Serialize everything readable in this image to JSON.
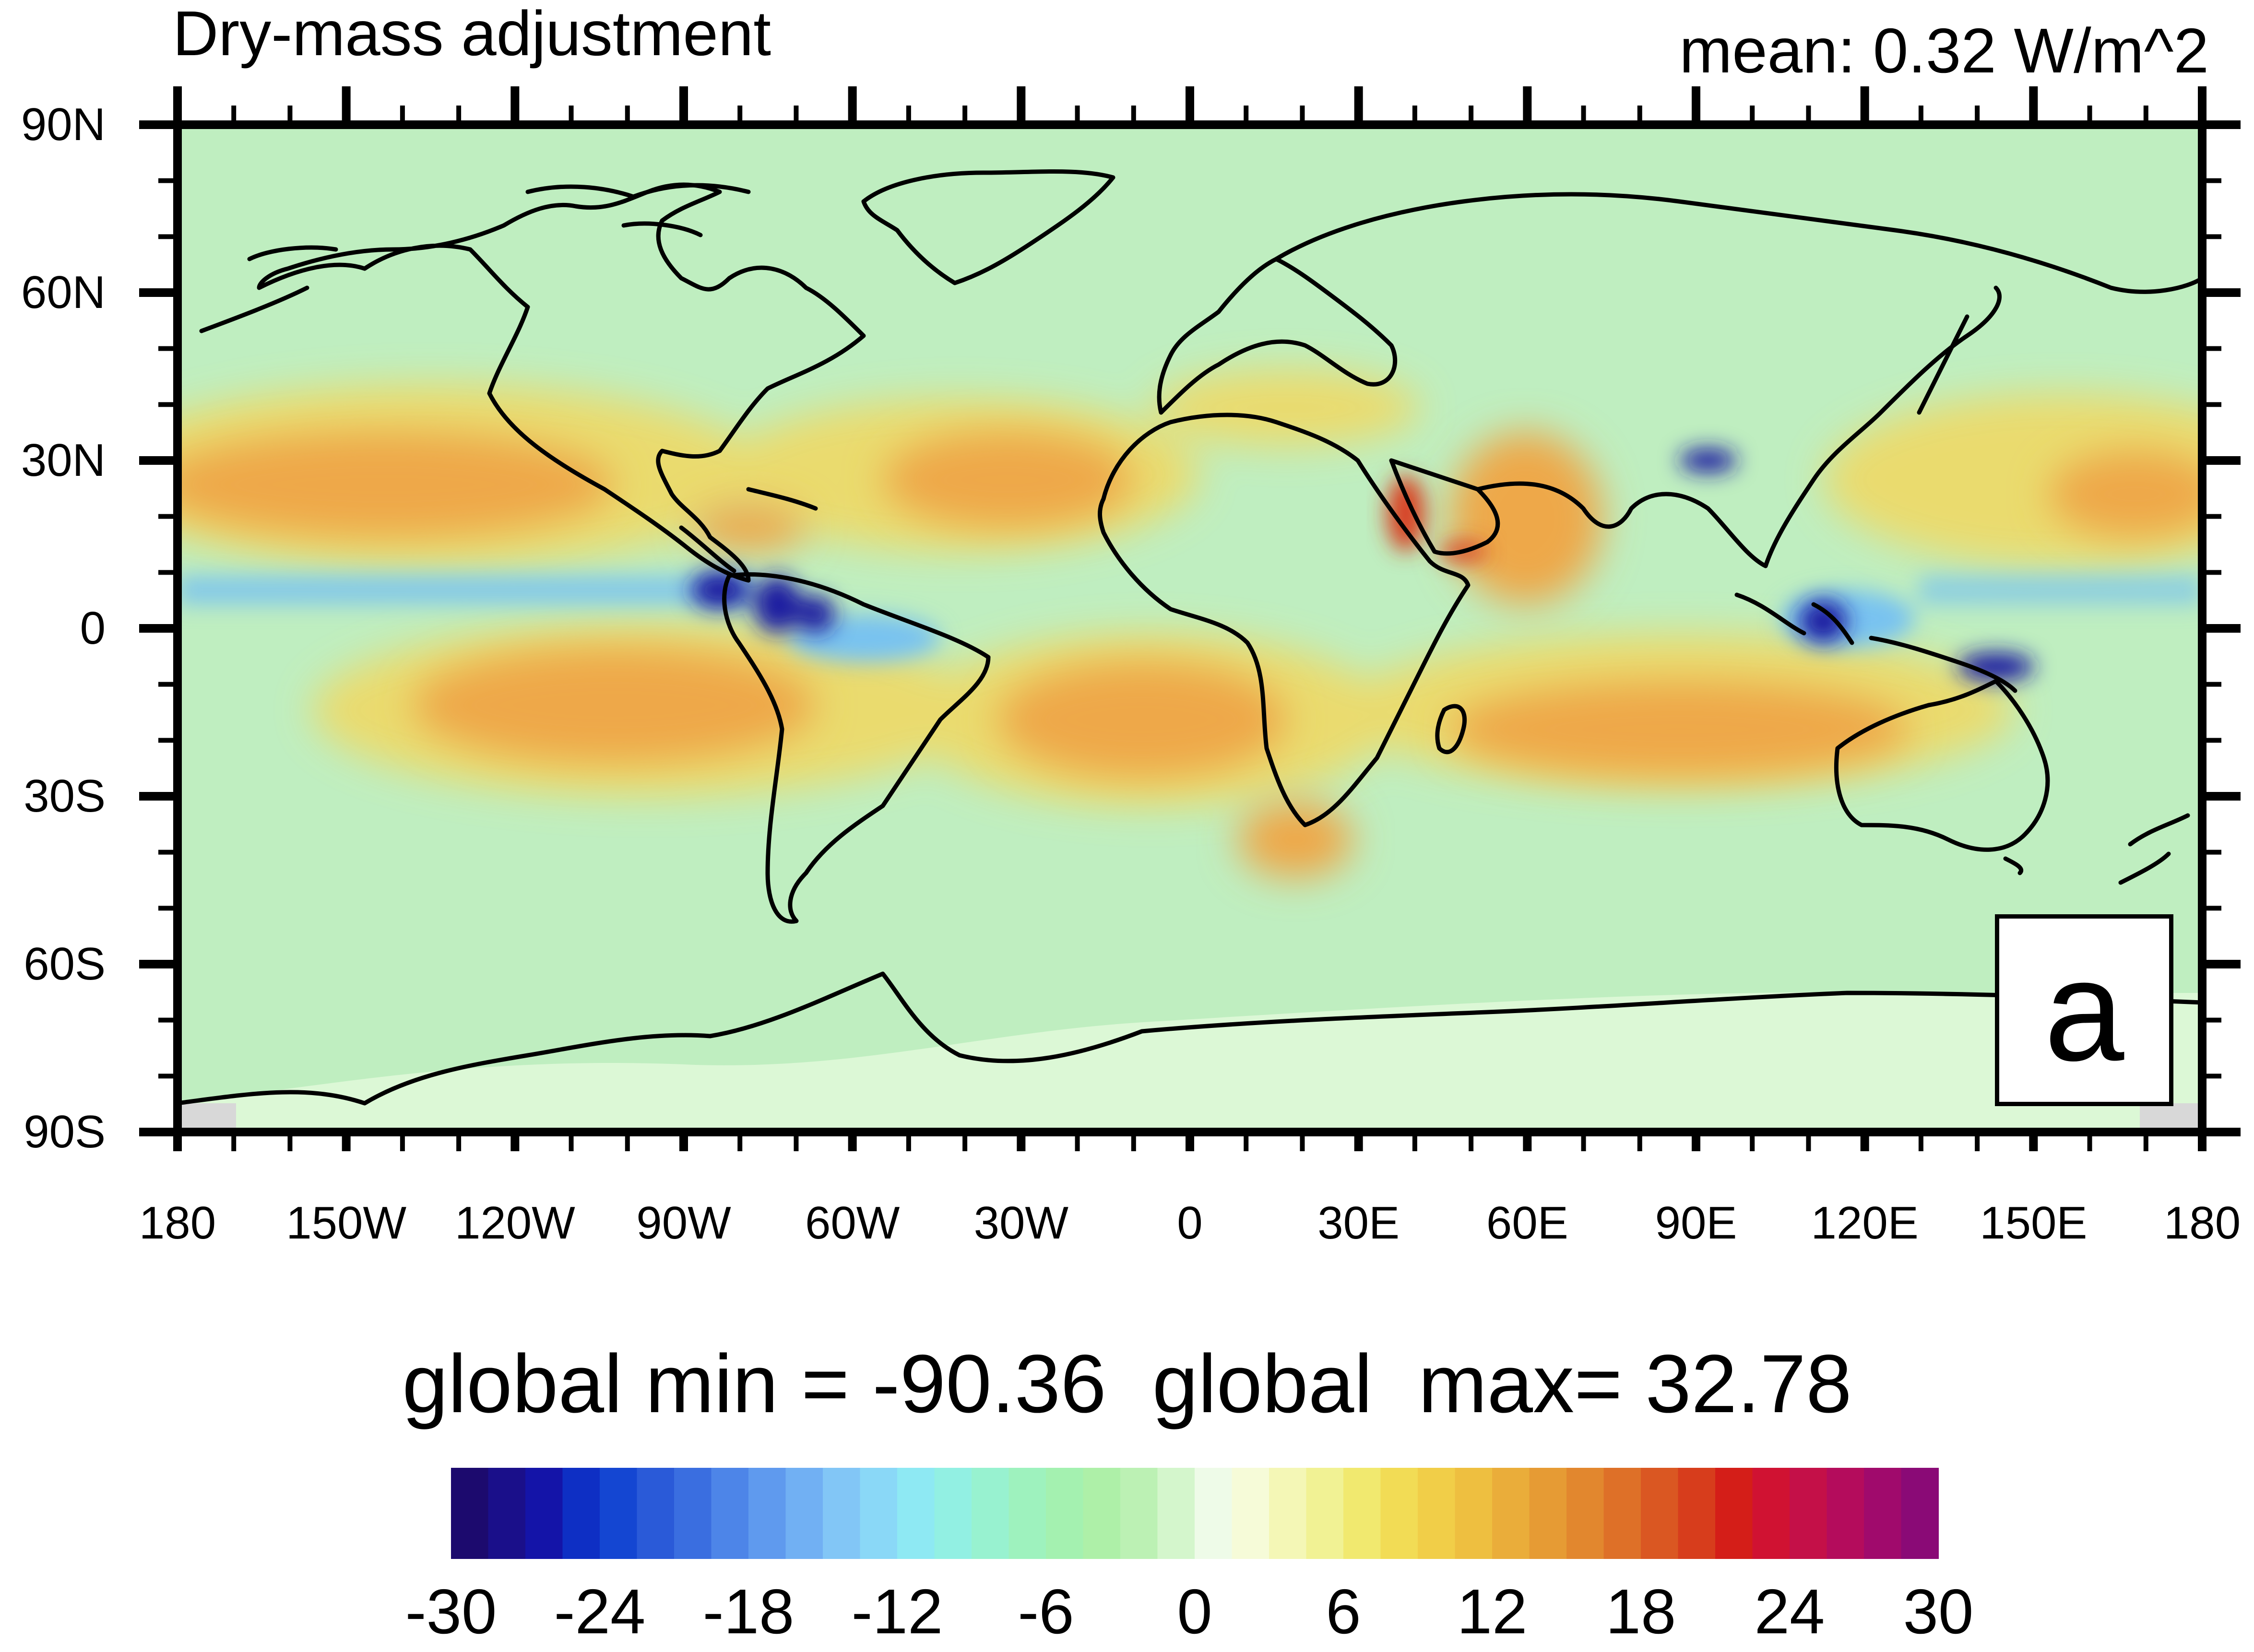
{
  "title": "Dry-mass adjustment",
  "mean_label": "mean: 0.32 W/m^2",
  "panel_label": "a",
  "stats_text": "global min = -90.36  global  max= 32.78",
  "lat_ticks": [
    "90N",
    "60N",
    "30N",
    "0",
    "30S",
    "60S",
    "90S"
  ],
  "lon_ticks": [
    "180",
    "150W",
    "120W",
    "90W",
    "60W",
    "30W",
    "0",
    "30E",
    "60E",
    "90E",
    "120E",
    "150E",
    "180"
  ],
  "colorbar": {
    "ticks": [
      "-30",
      "-24",
      "-18",
      "-12",
      "-6",
      "0",
      "6",
      "12",
      "18",
      "24",
      "30"
    ],
    "min": -30,
    "max": 30,
    "colors": [
      "#1c0a6e",
      "#1a0f8a",
      "#1414a8",
      "#0e2fc4",
      "#1446d2",
      "#2a5ad8",
      "#3a6ee0",
      "#4d85e8",
      "#5f9aee",
      "#71b0f3",
      "#82c6f6",
      "#8ad8f7",
      "#8ee9f3",
      "#92f0e3",
      "#98f2d0",
      "#9ef2be",
      "#a4f1b0",
      "#aef0a8",
      "#bcf1b4",
      "#d4f6cc",
      "#eefbe8",
      "#f6fbd8",
      "#f4f7b6",
      "#f1f294",
      "#f1e96f",
      "#f2dc55",
      "#f1ce48",
      "#eebf40",
      "#eaad3a",
      "#e69b34",
      "#e2872e",
      "#de7028",
      "#da5722",
      "#d73d1c",
      "#d41e18",
      "#d01232",
      "#c41048",
      "#b40c5c",
      "#a00a6c",
      "#8a0a76"
    ]
  },
  "colors": {
    "field_background": "#bfeec0",
    "tropical_warm": "#eea848",
    "subtropical_warm": "#f2d860",
    "equatorial_cool": "#78c2f0",
    "deep_negative": "#1a1aa0",
    "antarctic": "#dcf8d6",
    "coastline": "#000000"
  }
}
